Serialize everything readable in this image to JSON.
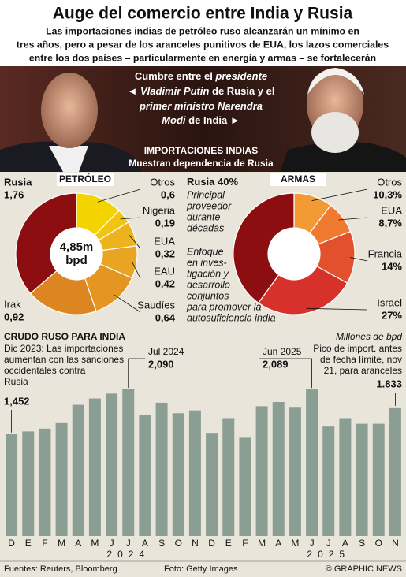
{
  "header": {
    "title": "Auge del comercio entre India y Rusia",
    "subtitle": [
      "Las importaciones indias de petróleo ruso alcanzarán un mínimo en",
      "tres años, pero a pesar de los aranceles punitivos de EUA, los lazos comerciales",
      "entre los dos países – particularmente en energía y armas – se fortalecerán"
    ]
  },
  "photo": {
    "caption": [
      [
        {
          "text": "Cumbre entre el "
        },
        {
          "text": "presidente",
          "italic": true
        }
      ],
      [
        {
          "text": "◄ "
        },
        {
          "text": "Vladimir Putin",
          "italic": true
        },
        {
          "text": " de Rusia y el"
        }
      ],
      [
        {
          "text": "primer ministro Narendra",
          "italic": true
        }
      ],
      [
        {
          "text": "Modi",
          "italic": true
        },
        {
          "text": " de India   ►"
        }
      ]
    ],
    "section_title": "IMPORTACIONES INDIAS",
    "section_subtitle": "Muestran dependencia de Rusia"
  },
  "chart_data": [
    {
      "type": "pie",
      "title": "PETRÓLEO",
      "center_label": "4,85m",
      "center_unit": "bpd",
      "categories": [
        "Otros",
        "Nigeria",
        "EUA",
        "EAU",
        "Saudíes",
        "Irak",
        "Rusia"
      ],
      "values": [
        0.6,
        0.19,
        0.32,
        0.42,
        0.64,
        0.92,
        1.76
      ],
      "value_labels": [
        "0,6",
        "0,19",
        "0,32",
        "0,42",
        "0,64",
        "0,92",
        "1,76"
      ],
      "colors": [
        "#f4d400",
        "#f2c412",
        "#eeb31c",
        "#eaa423",
        "#e49522",
        "#dd8520",
        "#8c0e10"
      ]
    },
    {
      "type": "pie",
      "title": "ARMAS",
      "categories": [
        "Otros",
        "EUA",
        "Francia",
        "Israel",
        "Rusia"
      ],
      "values": [
        10.3,
        8.7,
        14,
        27,
        40
      ],
      "value_labels": [
        "10,3%",
        "8,7%",
        "14%",
        "27%",
        "40%"
      ],
      "colors": [
        "#f39a35",
        "#ef7a30",
        "#e2512c",
        "#d6312a",
        "#8c0e10"
      ],
      "annotations": [
        [
          "Principal",
          "proveedor",
          "durante",
          "décadas"
        ],
        [
          "Enfoque",
          "en inves-",
          "tigación y",
          "desarrollo",
          "conjuntos",
          "para promover la",
          "autosuficiencia india"
        ]
      ]
    },
    {
      "type": "bar",
      "title": "CRUDO RUSO PARA INDIA",
      "unit": "Millones de bpd",
      "categories": [
        "D",
        "E",
        "F",
        "M",
        "A",
        "M",
        "J",
        "J",
        "A",
        "S",
        "O",
        "N",
        "D",
        "E",
        "F",
        "M",
        "A",
        "M",
        "J",
        "J",
        "A",
        "S",
        "O",
        "N"
      ],
      "years": [
        "2024",
        "2025"
      ],
      "values": [
        1.452,
        1.49,
        1.53,
        1.62,
        1.87,
        1.96,
        2.03,
        2.09,
        1.73,
        1.9,
        1.75,
        1.79,
        1.47,
        1.68,
        1.4,
        1.85,
        1.91,
        1.84,
        2.089,
        1.56,
        1.68,
        1.6,
        1.6,
        1.833
      ],
      "value_labels": [
        "1,452",
        null,
        null,
        null,
        null,
        null,
        null,
        "2,090",
        null,
        null,
        null,
        null,
        null,
        null,
        null,
        null,
        null,
        null,
        "2,089",
        null,
        null,
        null,
        null,
        "1.833"
      ],
      "color": "#8a9e93",
      "annotations": [
        [
          "Dic 2023: Las importaciones",
          "aumentan con las sanciones",
          "occidentales contra",
          "Rusia"
        ],
        [
          "Jul 2024"
        ],
        [
          "Jun 2025"
        ],
        [
          "Pico de import. antes",
          "de fecha límite, nov",
          "21, para aranceles"
        ]
      ]
    }
  ],
  "footer": {
    "sources": "Fuentes: Reuters, Bloomberg",
    "photo_credit": "Foto: Getty Images",
    "copyright": "© GRAPHIC NEWS"
  }
}
